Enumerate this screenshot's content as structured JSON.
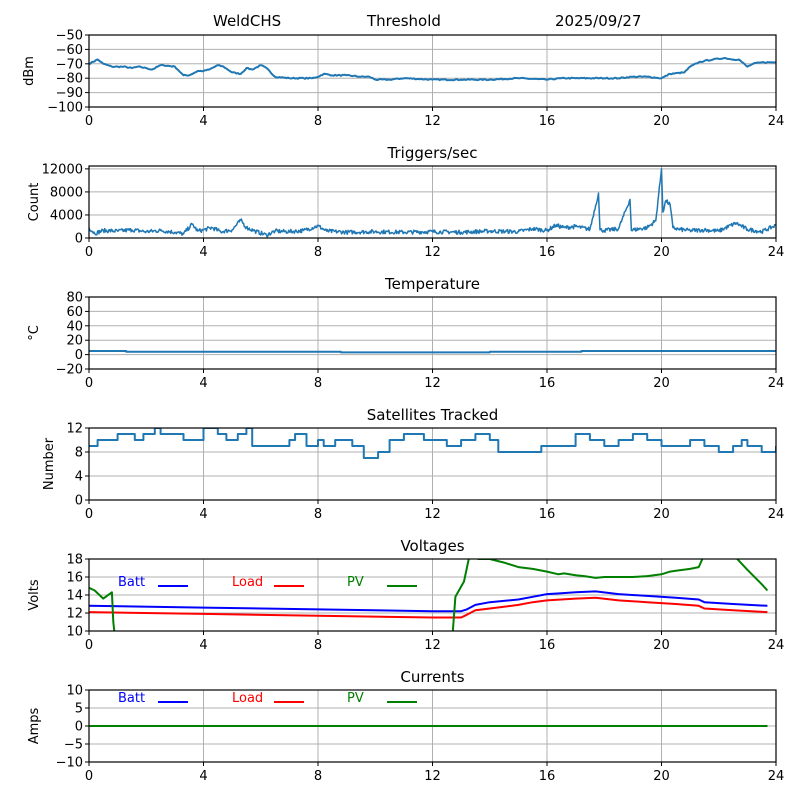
{
  "header": {
    "station": "WeldCHS",
    "mode": "Threshold",
    "date": "2025/09/27"
  },
  "colors": {
    "series_default": "#1f77b4",
    "batt": "#0000ff",
    "load": "#ff0000",
    "pv": "#008000",
    "grid": "#b0b0b0",
    "axis": "#000000"
  },
  "chart_data": [
    {
      "id": "noise",
      "type": "line",
      "title": "",
      "xlabel": "",
      "ylabel": "dBm",
      "xlim": [
        0,
        24
      ],
      "ylim": [
        -100,
        -50
      ],
      "xticks": [
        0,
        4,
        8,
        12,
        16,
        20,
        24
      ],
      "yticks": [
        -100,
        -90,
        -80,
        -70,
        -60,
        -50
      ],
      "ytick_labels": [
        "−100",
        "−90",
        "−80",
        "−70",
        "−60",
        "−50"
      ],
      "grid": true,
      "series": [
        {
          "name": "dBm",
          "color": "#1f77b4",
          "x": [
            0,
            0.3,
            0.5,
            0.8,
            1.2,
            1.5,
            1.7,
            2.0,
            2.2,
            2.5,
            2.6,
            3.0,
            3.1,
            3.3,
            3.5,
            3.8,
            4.0,
            4.2,
            4.5,
            4.7,
            5.0,
            5.3,
            5.5,
            5.7,
            6.0,
            6.2,
            6.5,
            7.0,
            7.5,
            7.8,
            8.0,
            8.2,
            8.5,
            9.0,
            9.5,
            9.8,
            10.0,
            10.5,
            11.0,
            12.0,
            13.0,
            14.0,
            15.0,
            16.0,
            16.5,
            17.0,
            18.0,
            18.5,
            19.0,
            19.5,
            20.0,
            20.3,
            20.8,
            21.0,
            21.3,
            21.5,
            21.8,
            22.2,
            22.5,
            22.7,
            23.0,
            23.2,
            23.5,
            24.0
          ],
          "y": [
            -70,
            -67,
            -70,
            -72,
            -72,
            -73,
            -72,
            -73,
            -74,
            -71,
            -71,
            -72,
            -74,
            -78,
            -78,
            -75,
            -75,
            -74,
            -71,
            -72,
            -76,
            -77,
            -73,
            -74,
            -71,
            -73,
            -79,
            -80,
            -80,
            -80,
            -79,
            -77,
            -78,
            -78,
            -79,
            -79,
            -81,
            -81,
            -80,
            -81,
            -81,
            -81,
            -80,
            -81,
            -80,
            -80,
            -80,
            -80,
            -79,
            -79,
            -80,
            -77,
            -76,
            -72,
            -69,
            -68,
            -67,
            -66,
            -67,
            -67,
            -72,
            -70,
            -69,
            -69
          ]
        }
      ]
    },
    {
      "id": "triggers",
      "type": "line",
      "title": "Triggers/sec",
      "xlabel": "",
      "ylabel": "Count",
      "xlim": [
        0,
        24
      ],
      "ylim": [
        0,
        12500
      ],
      "xticks": [
        0,
        4,
        8,
        12,
        16,
        20,
        24
      ],
      "yticks": [
        0,
        4000,
        8000,
        12000
      ],
      "ytick_labels": [
        "0",
        "4000",
        "8000",
        "12000"
      ],
      "grid": true,
      "series": [
        {
          "name": "Count",
          "color": "#1f77b4",
          "baseline": 1200,
          "x": [
            0,
            0.2,
            0.5,
            1.0,
            1.5,
            2.0,
            2.5,
            3.0,
            3.3,
            3.6,
            3.8,
            4.0,
            4.3,
            4.6,
            5.0,
            5.3,
            5.5,
            5.8,
            6.2,
            6.5,
            7.0,
            7.5,
            8.0,
            8.3,
            9.0,
            10.0,
            11.0,
            12.0,
            13.0,
            14.0,
            15.0,
            15.5,
            16.0,
            16.3,
            16.6,
            17.0,
            17.5,
            17.8,
            17.85,
            18.0,
            18.5,
            18.9,
            18.95,
            19.0,
            19.5,
            19.8,
            20.0,
            20.05,
            20.15,
            20.3,
            20.4,
            20.6,
            21.0,
            21.5,
            22.0,
            22.6,
            23.0,
            23.5,
            24.0
          ],
          "y": [
            1800,
            800,
            1300,
            1200,
            1400,
            1100,
            1300,
            1000,
            700,
            2400,
            1200,
            1400,
            1800,
            1100,
            1400,
            3100,
            1800,
            1200,
            500,
            1200,
            1100,
            1300,
            2100,
            1200,
            1000,
            1100,
            1000,
            1100,
            1000,
            1200,
            1100,
            1600,
            1300,
            2200,
            1800,
            2000,
            1500,
            7800,
            1400,
            1300,
            1600,
            6700,
            1300,
            1400,
            1800,
            3000,
            12000,
            4500,
            6500,
            5800,
            1800,
            1500,
            1300,
            1400,
            1200,
            2600,
            1500,
            1100,
            2200
          ]
        }
      ]
    },
    {
      "id": "temperature",
      "type": "line",
      "title": "Temperature",
      "xlabel": "",
      "ylabel": "°C",
      "xlim": [
        0,
        24
      ],
      "ylim": [
        -20,
        80
      ],
      "xticks": [
        0,
        4,
        8,
        12,
        16,
        20,
        24
      ],
      "yticks": [
        -20,
        0,
        20,
        40,
        60,
        80
      ],
      "ytick_labels": [
        "−20",
        "0",
        "20",
        "40",
        "60",
        "80"
      ],
      "grid": true,
      "step": true,
      "series": [
        {
          "name": "Temperature",
          "color": "#1f77b4",
          "x": [
            0,
            1.3,
            8.8,
            14.0,
            17.2,
            24.0
          ],
          "y": [
            5,
            4,
            3,
            4,
            5,
            5
          ]
        }
      ]
    },
    {
      "id": "satellites",
      "type": "line",
      "title": "Satellites Tracked",
      "xlabel": "",
      "ylabel": "Number",
      "xlim": [
        0,
        24
      ],
      "ylim": [
        0,
        12
      ],
      "xticks": [
        0,
        4,
        8,
        12,
        16,
        20,
        24
      ],
      "yticks": [
        0,
        4,
        8,
        12
      ],
      "ytick_labels": [
        "0",
        "4",
        "8",
        "12"
      ],
      "grid": true,
      "step": true,
      "series": [
        {
          "name": "Satellites",
          "color": "#1f77b4",
          "x": [
            0,
            0.3,
            0.5,
            1.0,
            1.3,
            1.6,
            1.9,
            2.3,
            2.5,
            3.3,
            4.0,
            4.5,
            4.8,
            5.2,
            5.5,
            5.7,
            6.6,
            7.0,
            7.2,
            7.6,
            8.0,
            8.2,
            8.6,
            9.2,
            9.6,
            10.1,
            10.5,
            11.0,
            11.7,
            12.5,
            13.0,
            13.5,
            14.0,
            14.3,
            15.0,
            15.8,
            16.5,
            17.0,
            17.5,
            18.0,
            18.5,
            19.0,
            19.5,
            20.0,
            20.5,
            21.0,
            21.5,
            22.0,
            22.5,
            22.8,
            23.0,
            23.5,
            24.0
          ],
          "y": [
            9,
            10,
            10,
            11,
            11,
            10,
            11,
            12,
            11,
            10,
            12,
            11,
            10,
            11,
            12,
            9,
            9,
            10,
            11,
            9,
            10,
            9,
            10,
            9,
            7,
            8,
            10,
            11,
            10,
            9,
            10,
            11,
            10,
            8,
            8,
            9,
            9,
            11,
            10,
            9,
            10,
            11,
            10,
            9,
            9,
            10,
            9,
            8,
            9,
            10,
            9,
            8,
            9
          ]
        }
      ]
    },
    {
      "id": "voltages",
      "type": "line",
      "title": "Voltages",
      "xlabel": "",
      "ylabel": "Volts",
      "xlim": [
        0,
        24
      ],
      "ylim": [
        10,
        18
      ],
      "xticks": [
        0,
        4,
        8,
        12,
        16,
        20,
        24
      ],
      "yticks": [
        10,
        12,
        14,
        16,
        18
      ],
      "ytick_labels": [
        "10",
        "12",
        "14",
        "16",
        "18"
      ],
      "grid": true,
      "legend": "top-left-inline",
      "series": [
        {
          "name": "Batt",
          "color": "#0000ff",
          "x": [
            0,
            4,
            8,
            12,
            13.0,
            13.2,
            13.5,
            14,
            15,
            15.5,
            16,
            16.5,
            17,
            17.7,
            18.5,
            19.5,
            20.5,
            21.3,
            21.5,
            22.5,
            23.7
          ],
          "y": [
            12.8,
            12.6,
            12.4,
            12.2,
            12.2,
            12.4,
            12.9,
            13.2,
            13.5,
            13.8,
            14.1,
            14.2,
            14.3,
            14.4,
            14.1,
            13.9,
            13.7,
            13.5,
            13.2,
            13.0,
            12.8
          ]
        },
        {
          "name": "Load",
          "color": "#ff0000",
          "x": [
            0,
            4,
            8,
            12,
            13.0,
            13.2,
            13.5,
            14,
            15,
            15.5,
            16,
            16.5,
            17,
            17.7,
            18.5,
            19.5,
            20.5,
            21.3,
            21.5,
            22.5,
            23.7
          ],
          "y": [
            12.1,
            11.9,
            11.7,
            11.5,
            11.5,
            11.8,
            12.3,
            12.5,
            12.9,
            13.2,
            13.4,
            13.5,
            13.6,
            13.7,
            13.4,
            13.2,
            13.0,
            12.8,
            12.5,
            12.3,
            12.1
          ]
        },
        {
          "name": "PV",
          "color": "#008000",
          "x": [
            0,
            0.2,
            0.5,
            0.8,
            0.85,
            0.9,
            12.7,
            12.8,
            13.1,
            13.3,
            13.6,
            14.0,
            14.5,
            15.0,
            15.5,
            16.0,
            16.4,
            16.6,
            17.0,
            17.3,
            17.7,
            18.0,
            18.5,
            19.0,
            19.5,
            20.0,
            20.3,
            20.5,
            21.0,
            21.3,
            21.5,
            22.5,
            23.0,
            23.5,
            23.7
          ],
          "y": [
            14.8,
            14.5,
            13.6,
            14.3,
            11.0,
            9.5,
            9.5,
            13.8,
            15.5,
            18.5,
            18.0,
            18.0,
            17.6,
            17.1,
            16.9,
            16.6,
            16.3,
            16.4,
            16.2,
            16.1,
            15.9,
            16.0,
            16.0,
            16.0,
            16.1,
            16.3,
            16.6,
            16.7,
            16.9,
            17.1,
            18.5,
            18.5,
            16.8,
            15.2,
            14.5
          ]
        }
      ]
    },
    {
      "id": "currents",
      "type": "line",
      "title": "Currents",
      "xlabel": "",
      "ylabel": "Amps",
      "xlim": [
        0,
        24
      ],
      "ylim": [
        -10,
        10
      ],
      "xticks": [
        0,
        4,
        8,
        12,
        16,
        20,
        24
      ],
      "yticks": [
        -10,
        -5,
        0,
        5,
        10
      ],
      "ytick_labels": [
        "−10",
        "−5",
        "0",
        "5",
        "10"
      ],
      "grid": true,
      "legend": "top-left-inline",
      "series": [
        {
          "name": "Batt",
          "color": "#0000ff",
          "x": [
            0,
            23.7
          ],
          "y": [
            0,
            0
          ]
        },
        {
          "name": "Load",
          "color": "#ff0000",
          "x": [
            0,
            23.7
          ],
          "y": [
            0,
            0
          ]
        },
        {
          "name": "PV",
          "color": "#008000",
          "x": [
            0,
            23.7
          ],
          "y": [
            0,
            0
          ]
        }
      ]
    }
  ]
}
